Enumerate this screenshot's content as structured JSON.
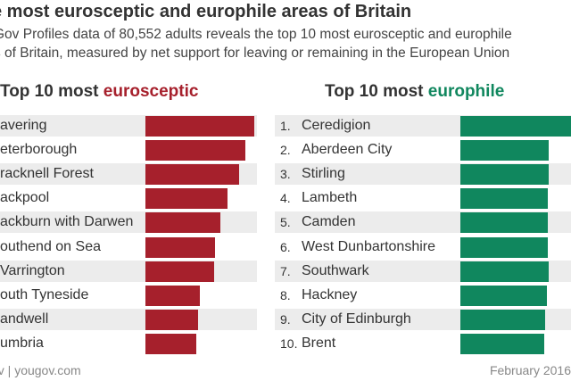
{
  "header": {
    "title": "e most eurosceptic and europhile areas of Britain",
    "subtitle_line1": "Gov Profiles data of 80,552 adults reveals the top 10 most eurosceptic and europhile",
    "subtitle_line2": "s of Britain, measured by net support for leaving or remaining in the European Union"
  },
  "footer": {
    "source": "ov | yougov.com",
    "date": "February 2016"
  },
  "colors": {
    "eurosceptic": "#a6202c",
    "europhile": "#10875e"
  },
  "chart_data": [
    {
      "type": "bar",
      "orientation": "horizontal",
      "title_prefix": "Top 10 most ",
      "title_accent": "eurosceptic",
      "categories": [
        "avering",
        "eterborough",
        "racknell Forest",
        "ackpool",
        "ackburn with Darwen",
        "outhend on Sea",
        "Varrington",
        "outh Tyneside",
        "andwell",
        "umbria"
      ],
      "values": [
        100,
        92,
        86,
        75,
        69,
        64,
        63,
        50,
        48,
        47
      ]
    },
    {
      "type": "bar",
      "orientation": "horizontal",
      "title_prefix": "Top 10 most ",
      "title_accent": "europhile",
      "ranks": [
        "1.",
        "2.",
        "3.",
        "4.",
        "5.",
        "6.",
        "7.",
        "8.",
        "9.",
        "10."
      ],
      "categories": [
        "Ceredigion",
        "Aberdeen City",
        "Stirling",
        "Lambeth",
        "Camden",
        "West Dunbartonshire",
        "Southwark",
        "Hackney",
        "City of Edinburgh",
        "Brent"
      ],
      "values": [
        100,
        80,
        80,
        79,
        79,
        79,
        80,
        78,
        77,
        76
      ]
    }
  ]
}
